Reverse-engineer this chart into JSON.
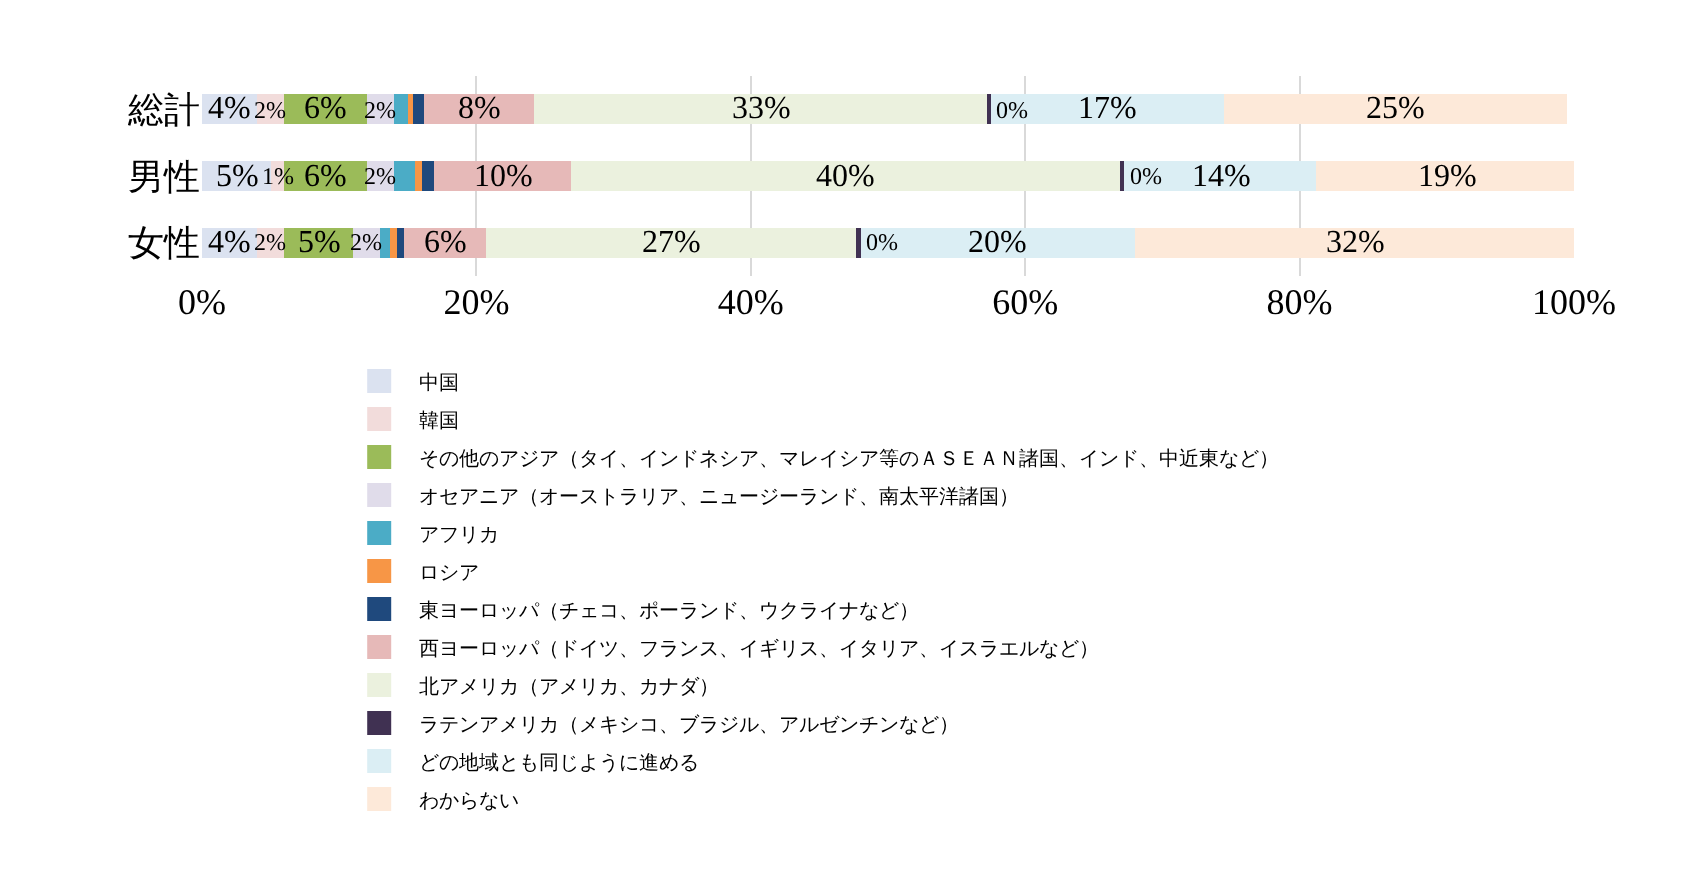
{
  "chart_data": {
    "type": "bar",
    "orientation": "horizontal",
    "stacked": true,
    "categories": [
      "総計",
      "男性",
      "女性"
    ],
    "xlim": [
      0,
      100
    ],
    "xticks": [
      {
        "value": 0,
        "label": "0%"
      },
      {
        "value": 20,
        "label": "20%"
      },
      {
        "value": 40,
        "label": "40%"
      },
      {
        "value": 60,
        "label": "60%"
      },
      {
        "value": 80,
        "label": "80%"
      },
      {
        "value": 100,
        "label": "100%"
      }
    ],
    "grid": "x",
    "legend": "bottom",
    "series": [
      {
        "name": "中国",
        "color": "#dbe2f0",
        "values": [
          4,
          5,
          4
        ],
        "value_labels": [
          "4%",
          "5%",
          "4%"
        ]
      },
      {
        "name": "韓国",
        "color": "#f2dcdb",
        "values": [
          2,
          1,
          2
        ],
        "value_labels": [
          "2%",
          "1%",
          "2%"
        ]
      },
      {
        "name": "その他のアジア（タイ、インドネシア、マレイシア等のＡＳＥＡＮ諸国、インド、中近東など）",
        "color": "#9bbb59",
        "values": [
          6,
          6,
          5
        ],
        "value_labels": [
          "6%",
          "6%",
          "5%"
        ]
      },
      {
        "name": "オセアニア（オーストラリア、ニュージーランド、南太平洋諸国）",
        "color": "#e0dcea",
        "values": [
          2,
          2,
          2
        ],
        "value_labels": [
          "2%",
          "2%",
          "2%"
        ]
      },
      {
        "name": "アフリカ",
        "color": "#4bacc6",
        "values": [
          1.0,
          1.5,
          0.7
        ],
        "value_labels": [
          null,
          null,
          null
        ]
      },
      {
        "name": "ロシア",
        "color": "#f79646",
        "values": [
          0.4,
          0.5,
          0.5
        ],
        "value_labels": [
          null,
          null,
          null
        ]
      },
      {
        "name": "東ヨーロッパ（チェコ、ポーランド、ウクライナなど）",
        "color": "#1f497d",
        "values": [
          0.8,
          0.9,
          0.5
        ],
        "value_labels": [
          null,
          null,
          null
        ]
      },
      {
        "name": "西ヨーロッパ（ドイツ、フランス、イギリス、イタリア、イスラエルなど）",
        "color": "#e6b9b8",
        "values": [
          8,
          10,
          6
        ],
        "value_labels": [
          "8%",
          "10%",
          "6%"
        ]
      },
      {
        "name": "北アメリカ（アメリカ、カナダ）",
        "color": "#ebf1de",
        "values": [
          33,
          40,
          27
        ],
        "value_labels": [
          "33%",
          "40%",
          "27%"
        ]
      },
      {
        "name": "ラテンアメリカ（メキシコ、ブラジル、アルゼンチンなど）",
        "color": "#403152",
        "values": [
          0.3,
          0.3,
          0.3
        ],
        "value_labels": [
          "0%",
          "0%",
          "0%"
        ]
      },
      {
        "name": "どの地域とも同じように進める",
        "color": "#dbeef4",
        "values": [
          17,
          14,
          20
        ],
        "value_labels": [
          "17%",
          "14%",
          "20%"
        ]
      },
      {
        "name": "わからない",
        "color": "#fde9d9",
        "values": [
          25,
          19,
          32
        ],
        "value_labels": [
          "25%",
          "19%",
          "32%"
        ]
      }
    ]
  }
}
